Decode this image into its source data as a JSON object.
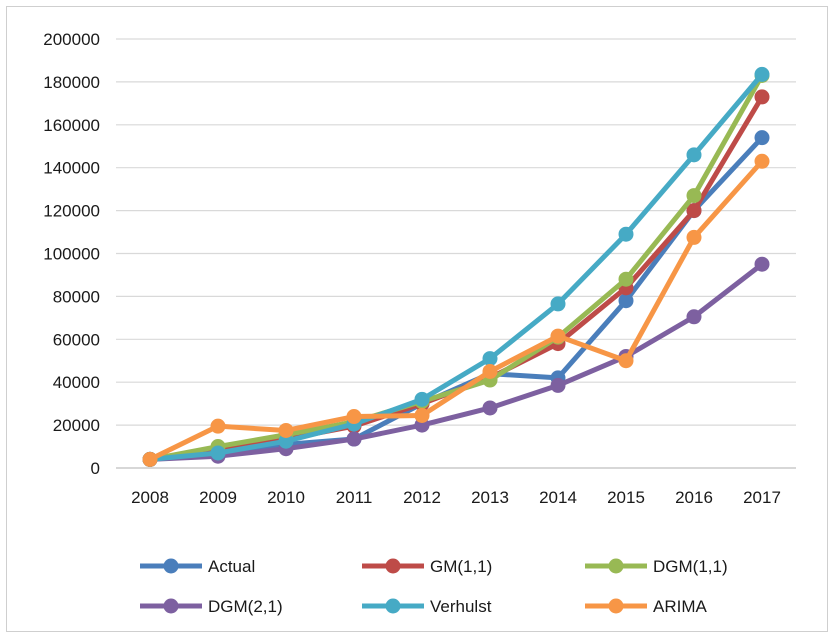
{
  "chart_data": {
    "type": "line",
    "title": "",
    "xlabel": "",
    "ylabel": "",
    "categories": [
      "2008",
      "2009",
      "2010",
      "2011",
      "2012",
      "2013",
      "2014",
      "2015",
      "2016",
      "2017"
    ],
    "ylim": [
      0,
      200000
    ],
    "yticks": [
      0,
      20000,
      40000,
      60000,
      80000,
      100000,
      120000,
      140000,
      160000,
      180000,
      200000
    ],
    "grid": true,
    "legend_position": "bottom",
    "series": [
      {
        "name": "Actual",
        "color": "#4a7ebb",
        "values": [
          4000,
          6500,
          11000,
          13500,
          30000,
          44000,
          42000,
          78000,
          120000,
          154000
        ]
      },
      {
        "name": "GM(1,1)",
        "color": "#be4b48",
        "values": [
          4000,
          8000,
          13500,
          19500,
          30000,
          42000,
          58000,
          84000,
          120000,
          173000
        ]
      },
      {
        "name": "DGM(1,1)",
        "color": "#98b954",
        "values": [
          4000,
          10000,
          15500,
          21500,
          31000,
          41000,
          61000,
          88000,
          127000,
          183000
        ]
      },
      {
        "name": "DGM(2,1)",
        "color": "#7d60a0",
        "values": [
          4000,
          5500,
          9000,
          13500,
          20000,
          28000,
          38500,
          52000,
          70500,
          95000
        ]
      },
      {
        "name": "Verhulst",
        "color": "#46aac5",
        "values": [
          4000,
          7000,
          12500,
          20500,
          32000,
          51000,
          76500,
          109000,
          146000,
          183500
        ]
      },
      {
        "name": "ARIMA",
        "color": "#f79646",
        "values": [
          4000,
          19500,
          17500,
          24000,
          24500,
          45000,
          61500,
          50000,
          107500,
          143000
        ]
      }
    ]
  }
}
